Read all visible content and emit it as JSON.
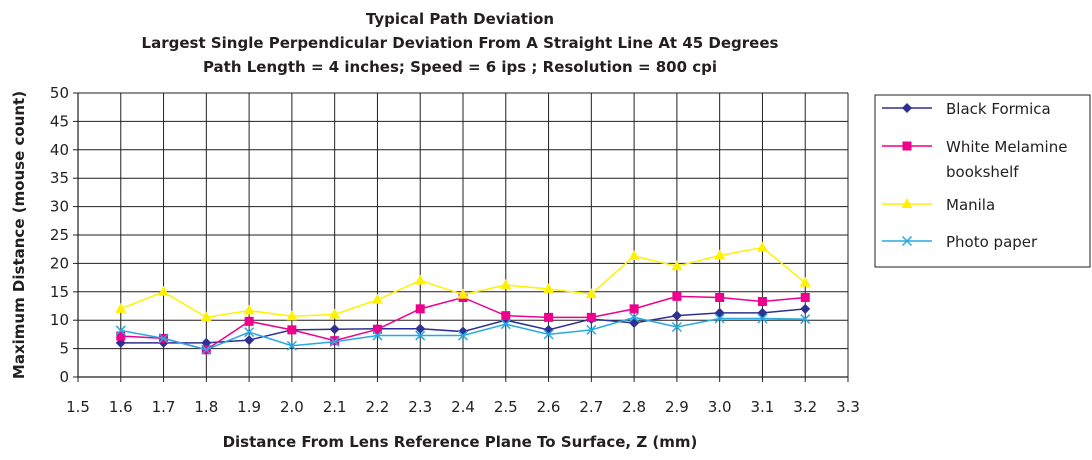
{
  "chart_data": {
    "type": "line",
    "title_lines": [
      "Typical Path Deviation",
      "Largest Single Perpendicular Deviation From A Straight Line At 45 Degrees",
      "Path Length = 4 inches; Speed = 6 ips ; Resolution = 800 cpi"
    ],
    "xlabel": "Distance From Lens Reference Plane To Surface, Z (mm)",
    "ylabel": "Maximum Distance (mouse count)",
    "xlim": [
      1.5,
      3.3
    ],
    "ylim": [
      0,
      50
    ],
    "x_ticks": [
      "1.5",
      "1.6",
      "1.7",
      "1.8",
      "1.9",
      "2.0",
      "2.1",
      "2.2",
      "2.3",
      "2.4",
      "2.5",
      "2.6",
      "2.7",
      "2.8",
      "2.9",
      "3.0",
      "3.1",
      "3.2",
      "3.3"
    ],
    "y_ticks": [
      "0",
      "5",
      "10",
      "15",
      "20",
      "25",
      "30",
      "35",
      "40",
      "45",
      "50"
    ],
    "grid": true,
    "legend_position": "right",
    "x": [
      1.6,
      1.7,
      1.8,
      1.9,
      2.0,
      2.1,
      2.2,
      2.3,
      2.4,
      2.5,
      2.6,
      2.7,
      2.8,
      2.9,
      3.0,
      3.1,
      3.2
    ],
    "series": [
      {
        "name": "Black Formica",
        "color": "#2e3192",
        "marker": "diamond",
        "values": [
          6,
          6,
          6,
          6.5,
          8.3,
          8.4,
          8.5,
          8.5,
          8,
          10,
          8.3,
          10.2,
          9.5,
          10.8,
          11.3,
          11.3,
          12
        ]
      },
      {
        "name": "White Melamine bookshelf",
        "legend_lines": [
          "White Melamine",
          "bookshelf"
        ],
        "color": "#ec008c",
        "marker": "square",
        "values": [
          7.2,
          6.8,
          4.8,
          9.8,
          8.3,
          6.4,
          8.4,
          12,
          14,
          10.8,
          10.5,
          10.5,
          12,
          14.2,
          14,
          13.3,
          14
        ]
      },
      {
        "name": "Manila",
        "color": "#fff200",
        "marker": "triangle",
        "values": [
          12,
          15,
          10.5,
          11.7,
          10.7,
          11,
          13.6,
          17,
          14.5,
          16.2,
          15.5,
          14.6,
          21.3,
          19.5,
          21.4,
          22.8,
          16.6
        ]
      },
      {
        "name": "Photo paper",
        "color": "#27aae1",
        "marker": "x",
        "values": [
          8.2,
          6.8,
          4.8,
          7.9,
          5.5,
          6.2,
          7.3,
          7.3,
          7.3,
          9.3,
          7.5,
          8.3,
          10.5,
          8.8,
          10.3,
          10.3,
          10.2
        ]
      }
    ]
  }
}
